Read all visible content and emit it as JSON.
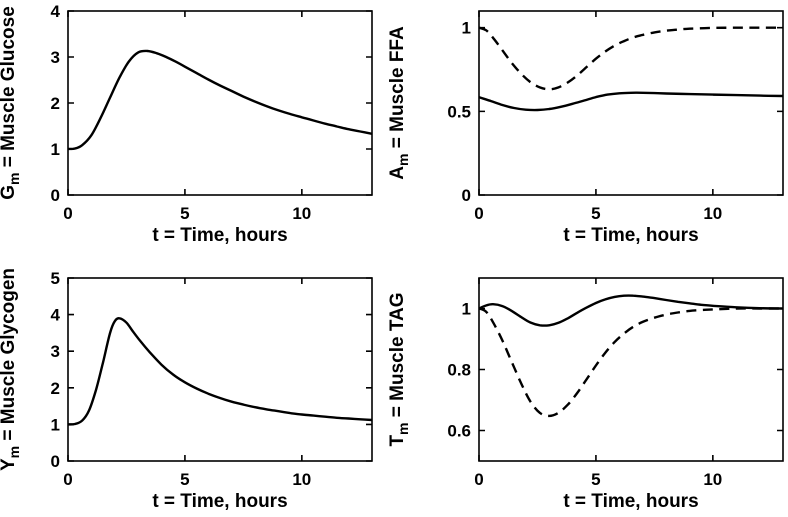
{
  "figure": {
    "background_color": "#ffffff",
    "line_color": "#000000",
    "xlabel": "t = Time, hours"
  },
  "chart_data": [
    {
      "id": "muscle-glucose",
      "type": "line",
      "position": "top-left",
      "title": "",
      "xlabel": "t = Time, hours",
      "ylabel": {
        "base": "G",
        "sub": "m",
        "rest": " = Muscle Glucose"
      },
      "xlim": [
        0,
        13
      ],
      "ylim": [
        0,
        4
      ],
      "xticks": [
        0,
        5,
        10
      ],
      "yticks": [
        0,
        1,
        2,
        3,
        4
      ],
      "grid": false,
      "legend": "none",
      "series": [
        {
          "line_style": "solid",
          "x": [
            0,
            0.3,
            0.6,
            1,
            1.4,
            1.8,
            2.2,
            2.6,
            3,
            3.4,
            3.8,
            4.2,
            4.6,
            5,
            5.5,
            6,
            6.5,
            7,
            7.5,
            8,
            8.5,
            9,
            9.5,
            10,
            10.5,
            11,
            11.5,
            12,
            12.5,
            13
          ],
          "y": [
            1.0,
            1.01,
            1.08,
            1.3,
            1.68,
            2.12,
            2.55,
            2.9,
            3.1,
            3.13,
            3.08,
            3.0,
            2.9,
            2.79,
            2.65,
            2.51,
            2.38,
            2.26,
            2.14,
            2.03,
            1.93,
            1.84,
            1.76,
            1.69,
            1.62,
            1.55,
            1.49,
            1.43,
            1.38,
            1.33
          ]
        }
      ]
    },
    {
      "id": "muscle-ffa",
      "type": "line",
      "position": "top-right",
      "title": "",
      "xlabel": "t = Time, hours",
      "ylabel": {
        "base": "A",
        "sub": "m",
        "rest": " = Muscle FFA"
      },
      "xlim": [
        0,
        13
      ],
      "ylim": [
        0,
        1.1
      ],
      "xticks": [
        0,
        5,
        10
      ],
      "yticks": [
        0,
        0.5,
        1
      ],
      "grid": false,
      "legend": "none",
      "series": [
        {
          "line_style": "solid",
          "x": [
            0,
            0.5,
            1,
            1.5,
            2,
            2.5,
            3,
            3.5,
            4,
            4.5,
            5,
            5.5,
            6,
            6.5,
            7,
            7.5,
            8,
            9,
            10,
            11,
            12,
            13
          ],
          "y": [
            0.585,
            0.562,
            0.538,
            0.52,
            0.51,
            0.508,
            0.514,
            0.527,
            0.545,
            0.565,
            0.585,
            0.6,
            0.608,
            0.611,
            0.611,
            0.609,
            0.607,
            0.603,
            0.6,
            0.597,
            0.594,
            0.592
          ]
        },
        {
          "line_style": "dashed",
          "x": [
            0,
            0.3,
            0.6,
            1,
            1.4,
            1.8,
            2.2,
            2.6,
            3,
            3.4,
            3.8,
            4.2,
            4.6,
            5,
            5.4,
            5.8,
            6.2,
            6.6,
            7,
            7.5,
            8,
            8.5,
            9,
            10,
            11,
            12,
            13
          ],
          "y": [
            1.0,
            0.985,
            0.94,
            0.865,
            0.79,
            0.725,
            0.675,
            0.643,
            0.632,
            0.643,
            0.673,
            0.715,
            0.765,
            0.815,
            0.858,
            0.893,
            0.92,
            0.942,
            0.957,
            0.972,
            0.982,
            0.989,
            0.994,
            0.999,
            1.0,
            1.0,
            1.0
          ]
        }
      ]
    },
    {
      "id": "muscle-glycogen",
      "type": "line",
      "position": "bottom-left",
      "title": "",
      "xlabel": "t = Time, hours",
      "ylabel": {
        "base": "Y",
        "sub": "m",
        "rest": " = Muscle Glycogen"
      },
      "xlim": [
        0,
        13
      ],
      "ylim": [
        0,
        5
      ],
      "xticks": [
        0,
        5,
        10
      ],
      "yticks": [
        0,
        1,
        2,
        3,
        4,
        5
      ],
      "grid": false,
      "legend": "none",
      "series": [
        {
          "line_style": "solid",
          "x": [
            0,
            0.3,
            0.6,
            0.9,
            1.2,
            1.5,
            1.8,
            2.0,
            2.2,
            2.5,
            2.8,
            3.1,
            3.5,
            4,
            4.5,
            5,
            5.5,
            6,
            6.5,
            7,
            7.5,
            8,
            8.5,
            9,
            9.5,
            10,
            10.5,
            11,
            11.5,
            12,
            12.5,
            13
          ],
          "y": [
            1.0,
            1.01,
            1.1,
            1.38,
            1.95,
            2.7,
            3.5,
            3.82,
            3.9,
            3.78,
            3.52,
            3.27,
            2.97,
            2.63,
            2.36,
            2.15,
            1.98,
            1.84,
            1.72,
            1.62,
            1.54,
            1.47,
            1.41,
            1.36,
            1.31,
            1.27,
            1.24,
            1.21,
            1.18,
            1.16,
            1.14,
            1.12
          ]
        }
      ]
    },
    {
      "id": "muscle-tag",
      "type": "line",
      "position": "bottom-right",
      "title": "",
      "xlabel": "t = Time, hours",
      "ylabel": {
        "base": "T",
        "sub": "m",
        "rest": " = Muscle TAG"
      },
      "xlim": [
        0,
        13
      ],
      "ylim": [
        0.5,
        1.1
      ],
      "xticks": [
        0,
        5,
        10
      ],
      "yticks": [
        0.6,
        0.8,
        1
      ],
      "grid": false,
      "legend": "none",
      "series": [
        {
          "line_style": "solid",
          "x": [
            0,
            0.3,
            0.6,
            1,
            1.4,
            1.8,
            2.2,
            2.6,
            3,
            3.4,
            3.8,
            4.2,
            4.6,
            5,
            5.4,
            5.8,
            6.2,
            6.6,
            7,
            7.5,
            8,
            8.5,
            9,
            9.5,
            10,
            11,
            12,
            13
          ],
          "y": [
            1.0,
            1.01,
            1.014,
            1.008,
            0.992,
            0.972,
            0.954,
            0.945,
            0.945,
            0.953,
            0.968,
            0.986,
            1.003,
            1.018,
            1.03,
            1.038,
            1.042,
            1.042,
            1.039,
            1.034,
            1.028,
            1.022,
            1.017,
            1.012,
            1.009,
            1.004,
            1.001,
            1.0
          ]
        },
        {
          "line_style": "dashed",
          "x": [
            0,
            0.3,
            0.6,
            1,
            1.4,
            1.8,
            2.2,
            2.6,
            3,
            3.4,
            3.8,
            4.2,
            4.6,
            5,
            5.4,
            5.8,
            6.2,
            6.6,
            7,
            7.5,
            8,
            8.5,
            9,
            9.5,
            10,
            11,
            12,
            13
          ],
          "y": [
            1.0,
            0.99,
            0.955,
            0.895,
            0.825,
            0.755,
            0.695,
            0.658,
            0.648,
            0.658,
            0.685,
            0.723,
            0.768,
            0.813,
            0.855,
            0.89,
            0.918,
            0.94,
            0.956,
            0.97,
            0.98,
            0.987,
            0.992,
            0.995,
            0.997,
            1.0,
            1.0,
            1.0
          ]
        }
      ]
    }
  ]
}
